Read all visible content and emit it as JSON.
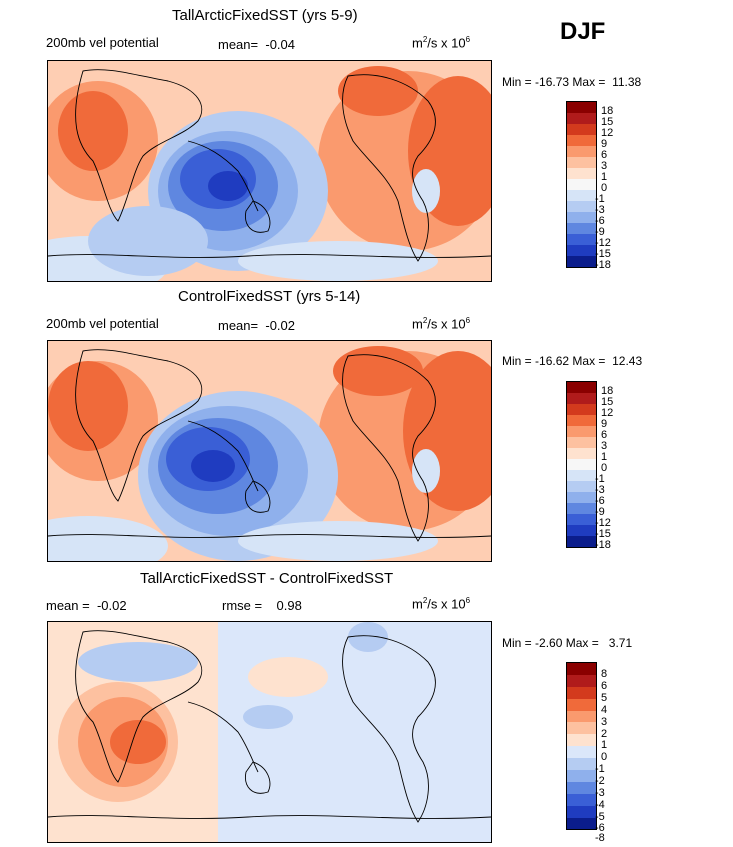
{
  "season": "DJF",
  "palette_main": [
    "#8a0000",
    "#b01b1b",
    "#d33a1d",
    "#f06a3a",
    "#fa9a6e",
    "#fdc1a0",
    "#fee2cf",
    "#f7f7f7",
    "#d6e4f7",
    "#b5ccf2",
    "#8fb0ec",
    "#5f87e0",
    "#3a5fd6",
    "#1f3cc0",
    "#0b1d8c"
  ],
  "palette_diff": [
    "#8a0000",
    "#b01b1b",
    "#d33a1d",
    "#f06a3a",
    "#fa9a6e",
    "#fdc1a0",
    "#fee2cf",
    "#dbe7fa",
    "#b5ccf2",
    "#8fb0ec",
    "#5f87e0",
    "#3a5fd6",
    "#1f3cc0",
    "#0b1d8c"
  ],
  "panels": [
    {
      "title": "TallArcticFixedSST (yrs 5-9)",
      "field": "200mb vel potential",
      "mean_label": "mean=",
      "mean": "-0.04",
      "units_base": "m",
      "units_exp": "2",
      "units_mid": "/s x 10",
      "units_pow": "6",
      "min_label": "Min =",
      "min": "-16.73",
      "max_label": "Max =",
      "max": "11.38",
      "levels": [
        "18",
        "15",
        "12",
        "9",
        "6",
        "3",
        "1",
        "0",
        "-1",
        "-3",
        "-6",
        "-9",
        "-12",
        "-15",
        "-18"
      ]
    },
    {
      "title": "ControlFixedSST (yrs 5-14)",
      "field": "200mb vel potential",
      "mean_label": "mean=",
      "mean": "-0.02",
      "units_base": "m",
      "units_exp": "2",
      "units_mid": "/s x 10",
      "units_pow": "6",
      "min_label": "Min =",
      "min": "-16.62",
      "max_label": "Max =",
      "max": "12.43",
      "levels": [
        "18",
        "15",
        "12",
        "9",
        "6",
        "3",
        "1",
        "0",
        "-1",
        "-3",
        "-6",
        "-9",
        "-12",
        "-15",
        "-18"
      ]
    },
    {
      "title": "TallArcticFixedSST - ControlFixedSST",
      "mean_label": "mean =",
      "mean": "-0.02",
      "rmse_label": "rmse =",
      "rmse": "0.98",
      "units_base": "m",
      "units_exp": "2",
      "units_mid": "/s x 10",
      "units_pow": "6",
      "min_label": "Min =",
      "min": "-2.60",
      "max_label": "Max =",
      "max": "3.71",
      "levels": [
        "8",
        "6",
        "5",
        "4",
        "3",
        "2",
        "1",
        "0",
        "-1",
        "-2",
        "-3",
        "-4",
        "-5",
        "-6",
        "-8"
      ]
    }
  ]
}
